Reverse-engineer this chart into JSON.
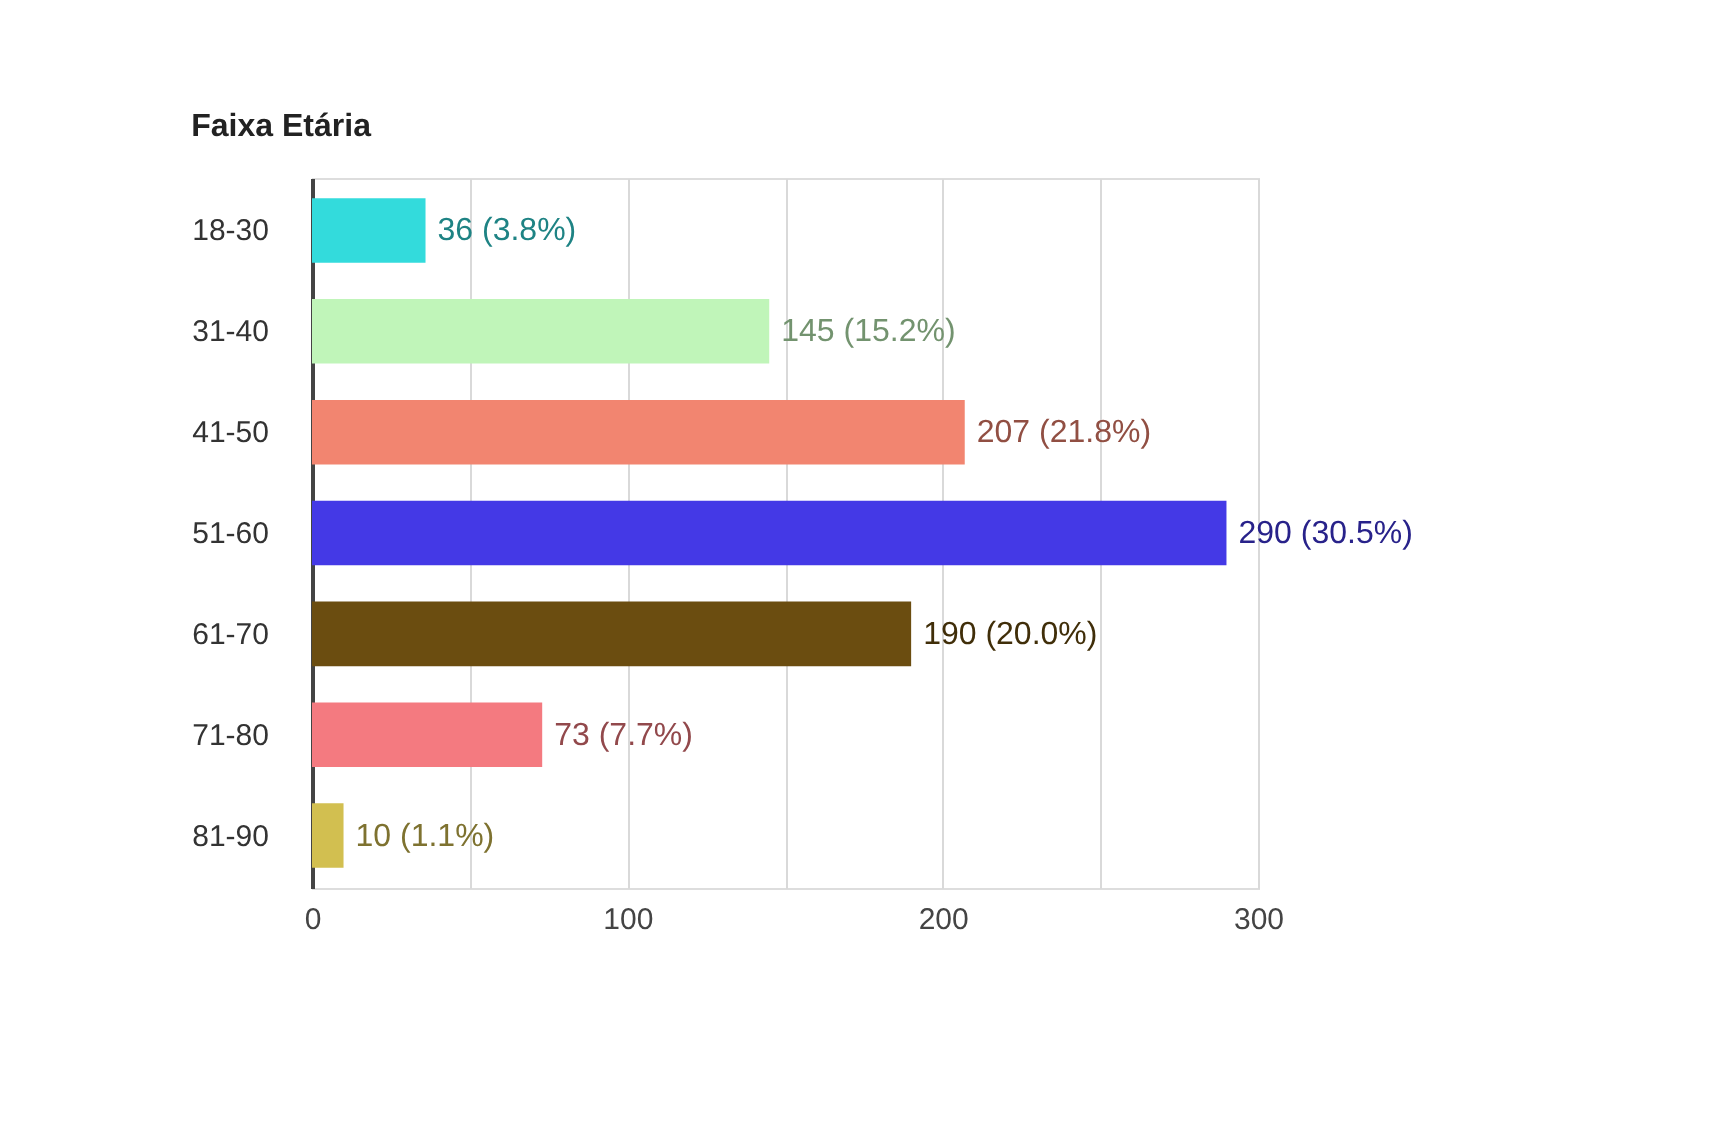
{
  "chart_data": {
    "type": "bar",
    "orientation": "horizontal",
    "title": "Faixa Etária",
    "categories": [
      "18-30",
      "31-40",
      "41-50",
      "51-60",
      "61-70",
      "71-80",
      "81-90"
    ],
    "values": [
      36,
      145,
      207,
      290,
      190,
      73,
      10
    ],
    "colors": [
      "#33dbdc",
      "#c0f5b9",
      "#f28570",
      "#4439e6",
      "#6b4d10",
      "#f47a80",
      "#d2bf50"
    ],
    "value_labels": [
      "36 (3.8%)",
      "145 (15.2%)",
      "207 (21.8%)",
      "290 (30.5%)",
      "190 (20.0%)",
      "73 (7.7%)",
      "10 (1.1%)"
    ],
    "xlim": [
      0,
      300
    ],
    "xticks": [
      0,
      {
        "value": 50,
        "label": null
      },
      100,
      {
        "value": 150,
        "label": null
      },
      200,
      {
        "value": 250,
        "label": null
      },
      300
    ],
    "grid": "x"
  }
}
